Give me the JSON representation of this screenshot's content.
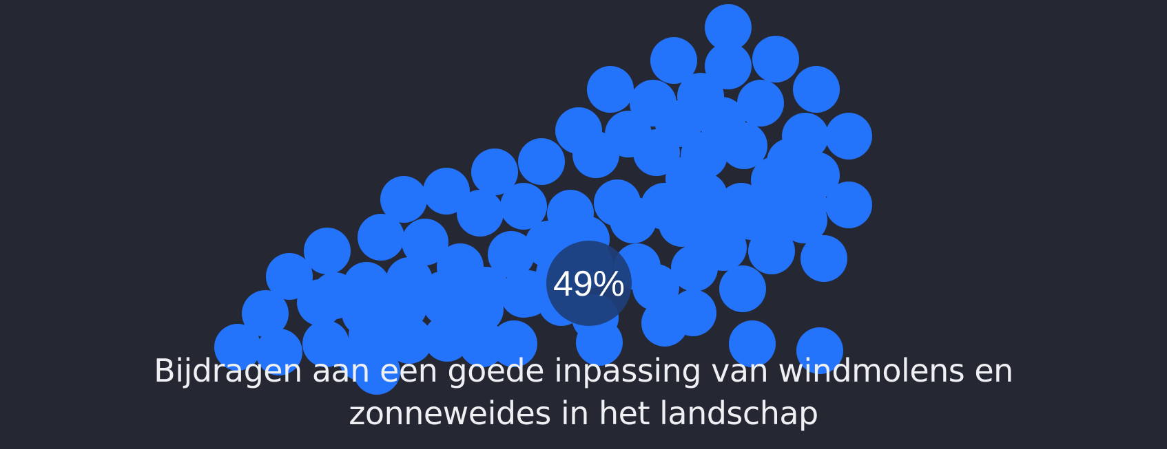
{
  "chart_data": {
    "type": "bubble-cluster",
    "value_percent": 49,
    "value_label": "49%",
    "caption_lines": [
      "Bijdragen aan een goede inpassing van windmolens en",
      "zonneweides in het landschap"
    ]
  },
  "colors": {
    "background": "#252833",
    "bubble": "#2473fb",
    "highlight_circle": "#1e3f7a",
    "text": "#eef0f4"
  }
}
